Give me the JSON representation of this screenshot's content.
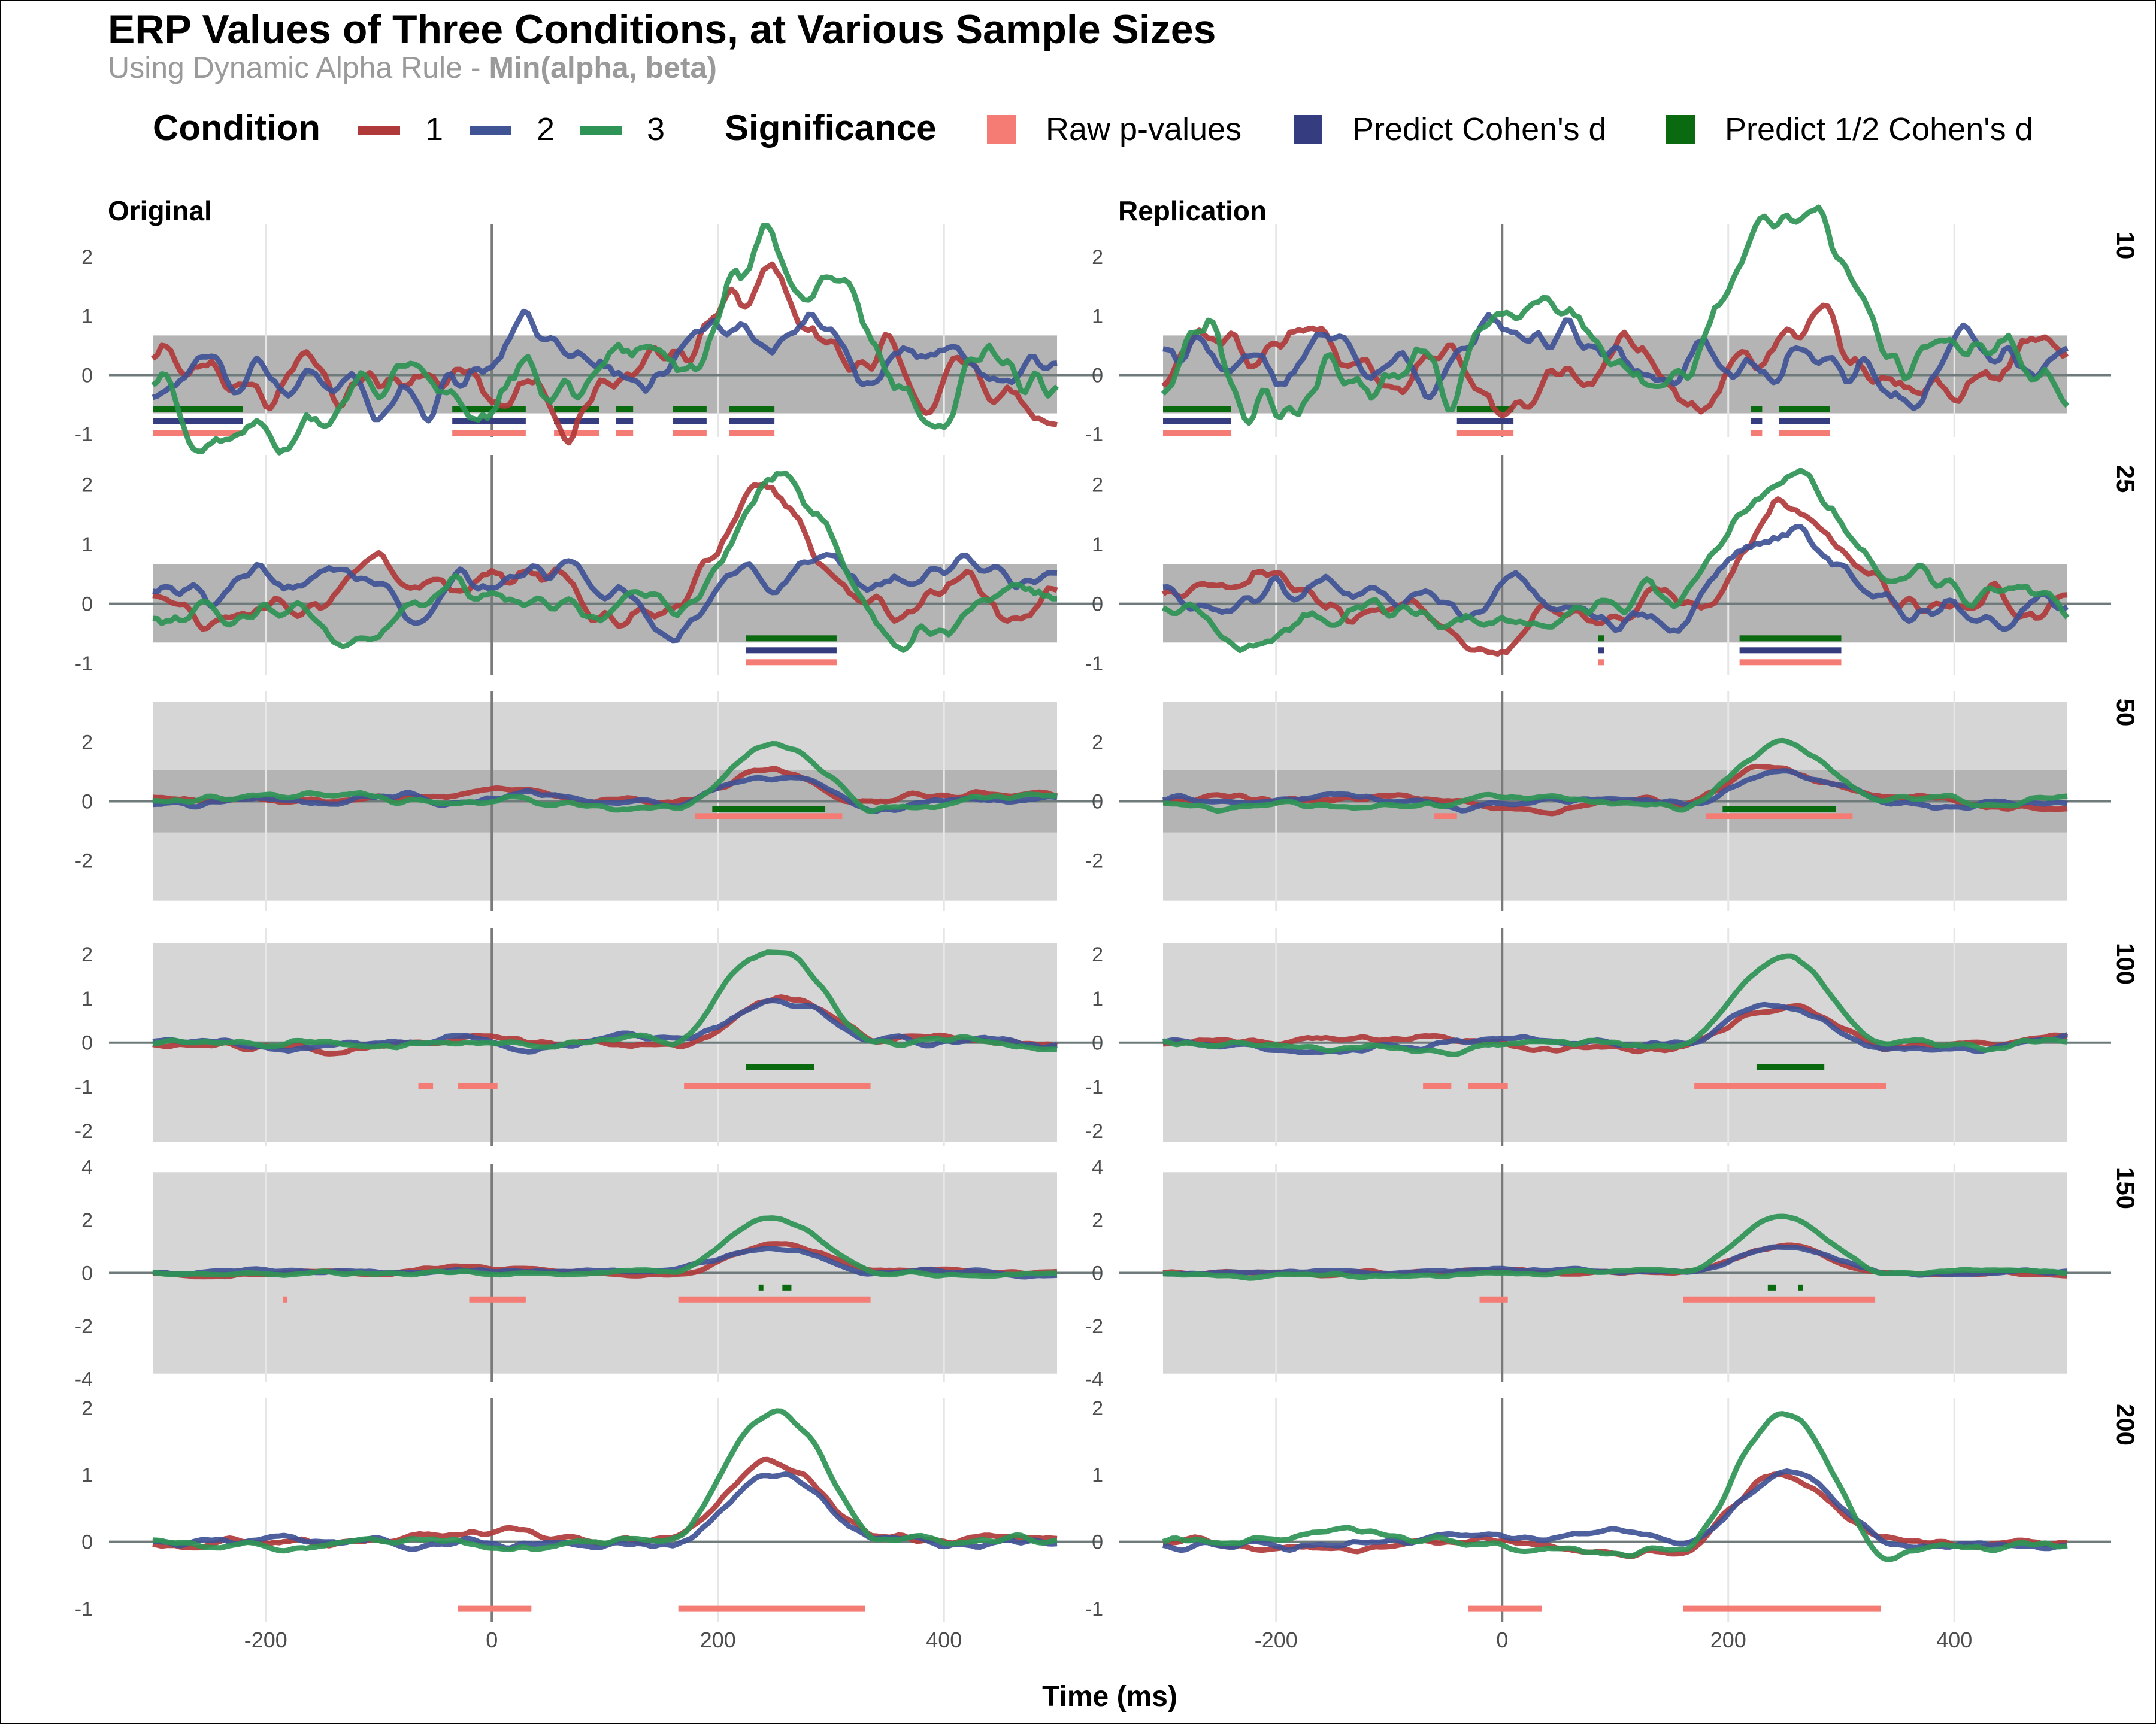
{
  "chart_data": {
    "type": "line",
    "title": "ERP Values of Three Conditions, at Various Sample Sizes",
    "subtitle_plain": "Using Dynamic Alpha Rule - ",
    "subtitle_bold": "Min(alpha, beta)",
    "xlabel": "Time (ms)",
    "ylabel": "",
    "xlim": [
      -300,
      500
    ],
    "x_ticks": [
      -200,
      0,
      200,
      400
    ],
    "x_tick_labels": [
      "-200",
      "0",
      "200",
      "400"
    ],
    "legend": {
      "condition_title": "Condition",
      "conditions": [
        {
          "label": "1",
          "color": "#B03A3A"
        },
        {
          "label": "2",
          "color": "#3F5395"
        },
        {
          "label": "3",
          "color": "#2E9455"
        }
      ],
      "significance_title": "Significance",
      "significance": [
        {
          "label": "Raw p-values",
          "color": "#F47C74"
        },
        {
          "label": "Predict Cohen's d",
          "color": "#353C7F"
        },
        {
          "label": "Predict 1/2 Cohen's d",
          "color": "#0A6A10"
        }
      ]
    },
    "columns": [
      "Original",
      "Replication"
    ],
    "rows": [
      {
        "n": "10",
        "ylim": [
          -1.05,
          2.55
        ],
        "y_ticks": [
          -1,
          0,
          1,
          2
        ],
        "y_tick_labels": [
          "-1",
          "0",
          "1",
          "2"
        ],
        "light_band": null,
        "dark_band": [
          -0.65,
          0.67
        ],
        "sig": {
          "Original": {
            "raw": [
              [
                -300,
                -220
              ],
              [
                -35,
                30
              ],
              [
                55,
                95
              ],
              [
                110,
                125
              ],
              [
                160,
                190
              ],
              [
                210,
                250
              ]
            ],
            "cohen": [
              [
                -300,
                -220
              ],
              [
                -35,
                30
              ],
              [
                55,
                95
              ],
              [
                110,
                125
              ],
              [
                160,
                190
              ],
              [
                210,
                250
              ]
            ],
            "half": [
              [
                -300,
                -220
              ],
              [
                -35,
                30
              ],
              [
                55,
                95
              ],
              [
                110,
                125
              ],
              [
                160,
                190
              ],
              [
                210,
                250
              ]
            ]
          },
          "Replication": {
            "raw": [
              [
                -300,
                -240
              ],
              [
                -40,
                10
              ],
              [
                220,
                230
              ],
              [
                245,
                290
              ]
            ],
            "cohen": [
              [
                -300,
                -240
              ],
              [
                -40,
                10
              ],
              [
                220,
                230
              ],
              [
                245,
                290
              ]
            ],
            "half": [
              [
                -300,
                -240
              ],
              [
                -40,
                10
              ],
              [
                220,
                230
              ],
              [
                245,
                290
              ]
            ]
          }
        }
      },
      {
        "n": "25",
        "ylim": [
          -1.2,
          2.5
        ],
        "y_ticks": [
          -1,
          0,
          1,
          2
        ],
        "y_tick_labels": [
          "-1",
          "0",
          "1",
          "2"
        ],
        "light_band": null,
        "dark_band": [
          -0.65,
          0.67
        ],
        "sig": {
          "Original": {
            "raw": [
              [
                225,
                305
              ]
            ],
            "cohen": [
              [
                225,
                305
              ]
            ],
            "half": [
              [
                225,
                305
              ]
            ]
          },
          "Replication": {
            "raw": [
              [
                85,
                90
              ],
              [
                210,
                300
              ]
            ],
            "cohen": [
              [
                85,
                90
              ],
              [
                210,
                300
              ]
            ],
            "half": [
              [
                85,
                90
              ],
              [
                210,
                300
              ]
            ]
          }
        }
      },
      {
        "n": "50",
        "ylim": [
          -3.7,
          3.7
        ],
        "y_ticks": [
          -2,
          0,
          2
        ],
        "y_tick_labels": [
          "-2",
          "0",
          "2"
        ],
        "light_band": [
          -3.35,
          3.35
        ],
        "dark_band": [
          -1.05,
          1.05
        ],
        "sig": {
          "Original": {
            "raw": [
              [
                180,
                310
              ]
            ],
            "cohen": [],
            "half": [
              [
                195,
                295
              ]
            ]
          },
          "Replication": {
            "raw": [
              [
                -60,
                -40
              ],
              [
                180,
                310
              ]
            ],
            "cohen": [],
            "half": [
              [
                195,
                295
              ]
            ]
          }
        }
      },
      {
        "n": "100",
        "ylim": [
          -2.35,
          2.6
        ],
        "y_ticks": [
          -2,
          -1,
          0,
          1,
          2
        ],
        "y_tick_labels": [
          "-2",
          "-1",
          "0",
          "1",
          "2"
        ],
        "light_band": [
          -2.25,
          2.25
        ],
        "dark_band": null,
        "sig": {
          "Original": {
            "raw": [
              [
                -65,
                -52
              ],
              [
                -30,
                5
              ],
              [
                170,
                335
              ]
            ],
            "cohen": [],
            "half": [
              [
                225,
                285
              ]
            ]
          },
          "Replication": {
            "raw": [
              [
                -70,
                -45
              ],
              [
                -30,
                5
              ],
              [
                170,
                340
              ]
            ],
            "cohen": [],
            "half": [
              [
                225,
                285
              ]
            ]
          }
        }
      },
      {
        "n": "150",
        "ylim": [
          -4.1,
          4.1
        ],
        "y_ticks": [
          -4,
          -2,
          0,
          2,
          4
        ],
        "y_tick_labels": [
          "-4",
          "-2",
          "0",
          "2",
          "4"
        ],
        "light_band": [
          -3.8,
          3.8
        ],
        "dark_band": null,
        "sig": {
          "Original": {
            "raw": [
              [
                -185,
                -182
              ],
              [
                -20,
                30
              ],
              [
                165,
                335
              ]
            ],
            "cohen": [],
            "half": [
              [
                236,
                240
              ],
              [
                257,
                265
              ]
            ]
          },
          "Replication": {
            "raw": [
              [
                -20,
                5
              ],
              [
                160,
                330
              ]
            ],
            "cohen": [],
            "half": [
              [
                235,
                242
              ],
              [
                262,
                266
              ]
            ]
          }
        }
      },
      {
        "n": "200",
        "ylim": [
          -1.2,
          2.15
        ],
        "y_ticks": [
          -1,
          0,
          1,
          2
        ],
        "y_tick_labels": [
          "-1",
          "0",
          "1",
          "2"
        ],
        "light_band": null,
        "dark_band": null,
        "sig": {
          "Original": {
            "raw": [
              [
                -30,
                35
              ],
              [
                165,
                330
              ]
            ],
            "cohen": [],
            "half": []
          },
          "Replication": {
            "raw": [
              [
                -30,
                35
              ],
              [
                160,
                335
              ]
            ],
            "cohen": [],
            "half": []
          }
        }
      }
    ]
  }
}
